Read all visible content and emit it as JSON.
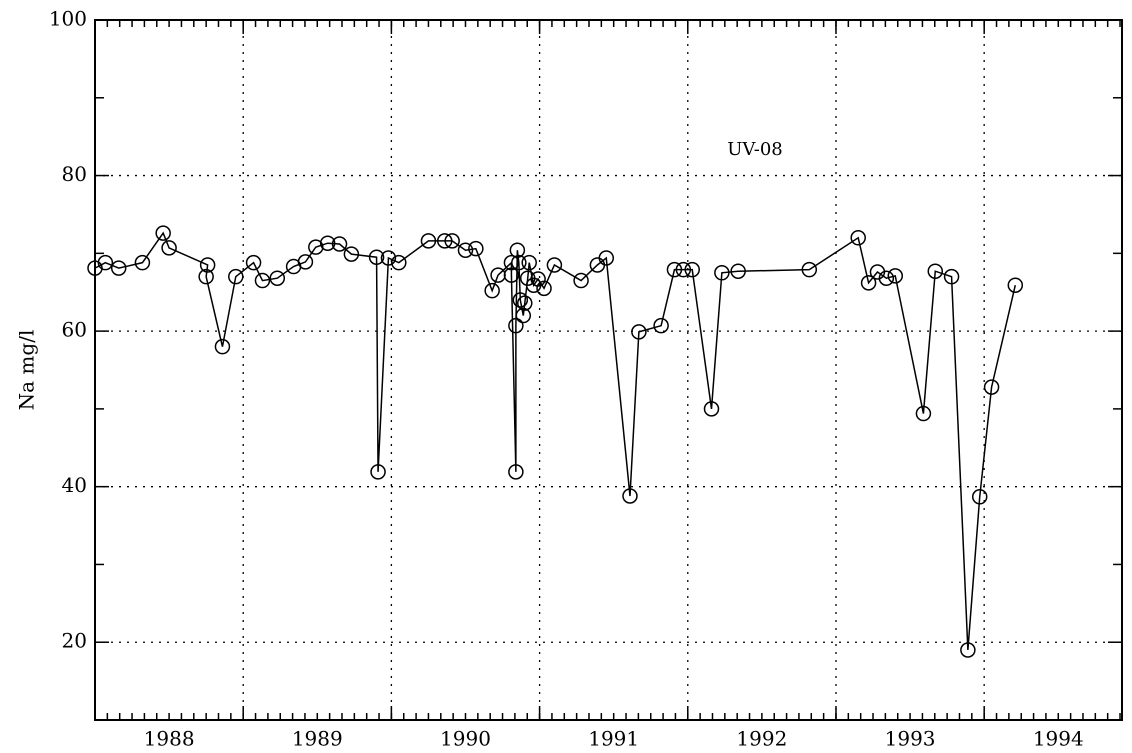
{
  "chart_data": {
    "type": "line",
    "y_label": "Na mg/l",
    "annotation": "UV-08",
    "x": [
      1988.0,
      1988.07,
      1988.16,
      1988.32,
      1988.46,
      1988.5,
      1988.76,
      1988.75,
      1988.86,
      1988.95,
      1989.07,
      1989.13,
      1989.23,
      1989.34,
      1989.42,
      1989.49,
      1989.57,
      1989.65,
      1989.73,
      1989.9,
      1989.91,
      1989.98,
      1990.05,
      1990.25,
      1990.36,
      1990.41,
      1990.5,
      1990.57,
      1990.68,
      1990.72,
      1990.81,
      1990.81,
      1990.84,
      1990.84,
      1990.85,
      1990.86,
      1990.87,
      1990.89,
      1990.9,
      1990.92,
      1990.93,
      1990.96,
      1990.99,
      1991.03,
      1991.1,
      1991.28,
      1991.39,
      1991.45,
      1991.61,
      1991.67,
      1991.82,
      1991.91,
      1991.97,
      1992.03,
      1992.16,
      1992.23,
      1992.34,
      1992.82,
      1993.15,
      1993.22,
      1993.28,
      1993.34,
      1993.4,
      1993.59,
      1993.67,
      1993.78,
      1993.89,
      1993.97,
      1994.05,
      1994.21
    ],
    "series": [
      {
        "name": "Na",
        "color": "#000000",
        "values": [
          68.1,
          68.8,
          68.1,
          68.8,
          72.6,
          70.7,
          68.5,
          67.0,
          58.0,
          67.0,
          68.8,
          66.5,
          66.8,
          68.3,
          68.9,
          70.8,
          71.3,
          71.2,
          69.9,
          69.5,
          41.9,
          69.4,
          68.8,
          71.6,
          71.6,
          71.6,
          70.4,
          70.6,
          65.2,
          67.2,
          68.8,
          67.2,
          41.9,
          60.7,
          70.4,
          68.8,
          64.0,
          62.0,
          63.6,
          66.8,
          68.8,
          65.9,
          66.7,
          65.5,
          68.5,
          66.5,
          68.5,
          69.4,
          38.8,
          59.9,
          60.7,
          67.9,
          67.9,
          67.9,
          50.0,
          67.5,
          67.7,
          67.9,
          72.0,
          66.2,
          67.6,
          66.8,
          67.1,
          49.4,
          67.7,
          67.0,
          19.0,
          38.7,
          52.8,
          65.9
        ]
      }
    ],
    "xlim": [
      1988,
      1994.93
    ],
    "xticks": [
      {
        "value": 1988.5,
        "label": "1988"
      },
      {
        "value": 1989.5,
        "label": "1989"
      },
      {
        "value": 1990.5,
        "label": "1990"
      },
      {
        "value": 1991.5,
        "label": "1991"
      },
      {
        "value": 1992.5,
        "label": "1992"
      },
      {
        "value": 1993.5,
        "label": "1993"
      },
      {
        "value": 1994.5,
        "label": "1994"
      }
    ],
    "xgrid": [
      1989,
      1990,
      1991,
      1992,
      1993,
      1994
    ],
    "ylim": [
      10,
      100
    ],
    "yticks": [
      20,
      40,
      60,
      80,
      100
    ],
    "grid": true
  }
}
